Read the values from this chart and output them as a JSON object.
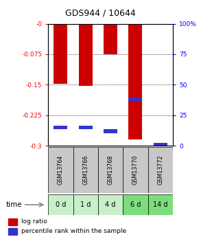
{
  "title": "GDS944 / 10644",
  "samples": [
    "GSM13764",
    "GSM13766",
    "GSM13768",
    "GSM13770",
    "GSM13772"
  ],
  "time_labels": [
    "0 d",
    "1 d",
    "4 d",
    "6 d",
    "14 d"
  ],
  "log_ratios": [
    -0.148,
    -0.152,
    -0.075,
    -0.285,
    -0.002
  ],
  "percentile_ranks": [
    15,
    15,
    12,
    38,
    1
  ],
  "ylim_left": [
    -0.3,
    0.0
  ],
  "yticks_left": [
    0.0,
    -0.075,
    -0.15,
    -0.225,
    -0.3
  ],
  "ytick_labels_left": [
    "-0",
    "-0.075",
    "-0.15",
    "-0.225",
    "-0.3"
  ],
  "yticks_right_pct": [
    100,
    75,
    50,
    25,
    0
  ],
  "bar_color": "#cc0000",
  "blue_color": "#3333cc",
  "bar_width": 0.55,
  "bg_color_plot": "#ffffff",
  "bg_color_sample": "#c8c8c8",
  "bg_color_time_light": "#c8f0c8",
  "bg_color_time_dark": "#7ddd7d",
  "time_highlight_indices": [
    3,
    4
  ],
  "legend_log_ratio": "log ratio",
  "legend_percentile": "percentile rank within the sample",
  "time_label": "time"
}
